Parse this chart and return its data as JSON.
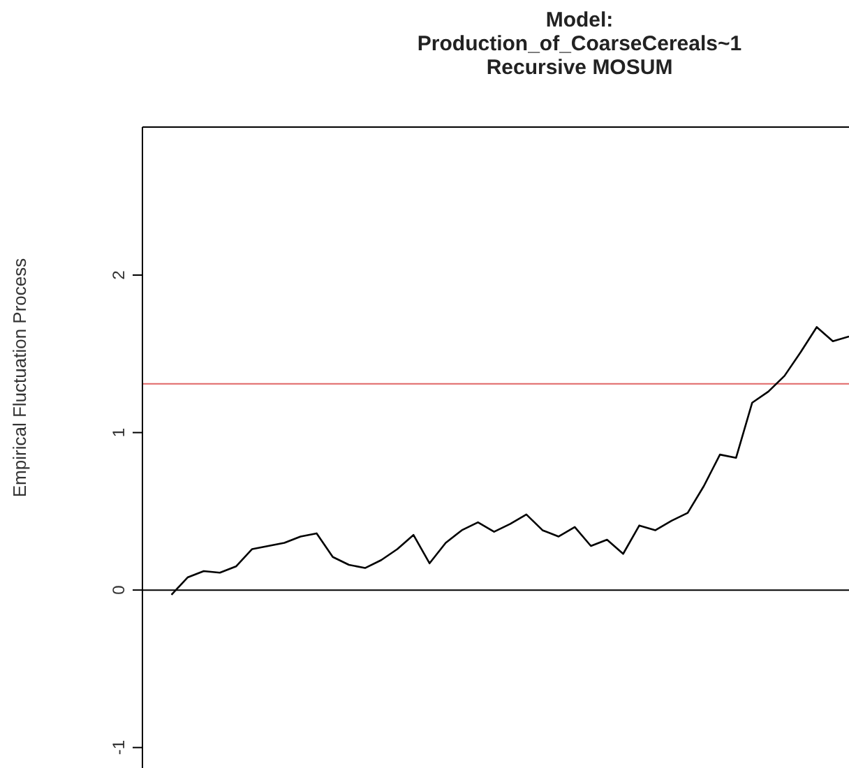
{
  "chart_data": {
    "type": "line",
    "title": "Model:\nProduction_of_CoarseCereals~1\nRecursive MOSUM",
    "ylabel": "Empirical Fluctuation Process",
    "categories": [
      null,
      null,
      null,
      null,
      null,
      null,
      null,
      null,
      null,
      null,
      null,
      null,
      null,
      null,
      null,
      null,
      null,
      null,
      null,
      null,
      null,
      null,
      null,
      null,
      null,
      null,
      null,
      null,
      null,
      null,
      null,
      null,
      null,
      null,
      null,
      null,
      null,
      null,
      null,
      null,
      null,
      null,
      null
    ],
    "series": [
      {
        "color": "#000000",
        "values": [
          -0.03,
          0.08,
          0.12,
          0.11,
          0.15,
          0.26,
          0.28,
          0.3,
          0.34,
          0.36,
          0.21,
          0.16,
          0.14,
          0.19,
          0.26,
          0.35,
          0.17,
          0.3,
          0.38,
          0.43,
          0.37,
          0.42,
          0.48,
          0.38,
          0.34,
          0.4,
          0.28,
          0.32,
          0.23,
          0.41,
          0.38,
          0.44,
          0.49,
          0.66,
          0.86,
          0.84,
          1.19,
          1.26,
          1.36,
          1.51,
          1.67,
          1.58,
          1.61
        ]
      }
    ],
    "ylim": [
      -1.13,
      2.94
    ],
    "yticks": [
      -1,
      0,
      1,
      2
    ],
    "grid": false,
    "marker": "none",
    "line_style": "solid",
    "ref_lines": [
      {
        "axis": "y",
        "value": 1.31,
        "color": "#e06666"
      },
      {
        "axis": "y",
        "value": 0,
        "color": "#000000"
      }
    ]
  }
}
